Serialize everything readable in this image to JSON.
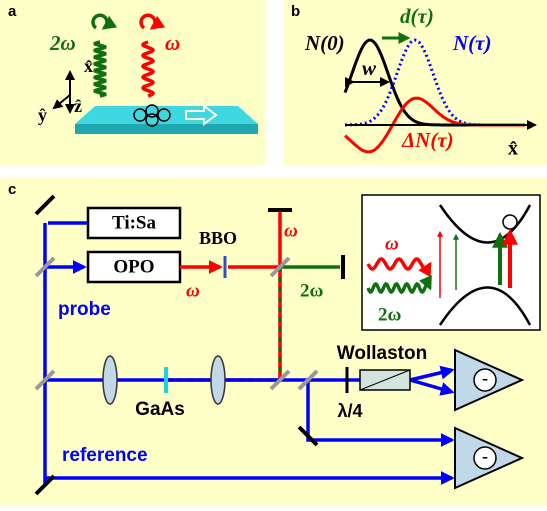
{
  "panel_a": {
    "label": "a",
    "two_omega": "2ω",
    "omega": "ω",
    "x_axis": "x̂",
    "y_axis": "ŷ",
    "z_axis": "ẑ"
  },
  "panel_b": {
    "label": "b",
    "shift": "d(τ)",
    "n0": "N(0)",
    "ntau": "N(τ)",
    "width": "w",
    "delta_n": "ΔN(τ)",
    "x_axis": "x̂"
  },
  "panel_c": {
    "label": "c",
    "laser": "Ti:Sa",
    "opo": "OPO",
    "bbo": "BBO",
    "omega_top": "ω",
    "omega_opo": "ω",
    "two_omega": "2ω",
    "probe": "probe",
    "sample": "GaAs",
    "wollaston": "Wollaston",
    "waveplate": "λ/4",
    "reference": "reference",
    "inset_omega": "ω",
    "inset_two_omega": "2ω",
    "detector_1": "-",
    "detector_2": "-"
  }
}
